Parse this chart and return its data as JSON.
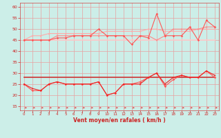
{
  "background_color": "#cceee8",
  "grid_color": "#e8a0a0",
  "xlabel": "Vent moyen/en rafales ( km/h )",
  "ylim": [
    13,
    62
  ],
  "xlim": [
    -0.5,
    23.5
  ],
  "yticks": [
    15,
    20,
    25,
    30,
    35,
    40,
    45,
    50,
    55,
    60
  ],
  "xticks": [
    0,
    1,
    2,
    3,
    4,
    5,
    6,
    7,
    8,
    9,
    10,
    11,
    12,
    13,
    14,
    15,
    16,
    17,
    18,
    19,
    20,
    21,
    22,
    23
  ],
  "upper_flat": [
    45,
    45,
    45,
    45,
    45,
    45,
    45,
    45,
    45,
    45,
    45,
    45,
    45,
    45,
    45,
    45,
    45,
    45,
    45,
    45,
    45,
    45,
    45,
    45
  ],
  "upper_line1": [
    45,
    47,
    47,
    48,
    48,
    48,
    48,
    48,
    48,
    48,
    49,
    49,
    49,
    49,
    49,
    50,
    50,
    49,
    49,
    49,
    49,
    50,
    50,
    50
  ],
  "upper_line2": [
    45,
    45,
    45,
    45,
    47,
    47,
    47,
    47,
    47,
    47,
    47,
    47,
    47,
    47,
    47,
    47,
    45,
    47,
    50,
    50,
    50,
    50,
    51,
    51
  ],
  "upper_line3": [
    45,
    45,
    45,
    45,
    46,
    46,
    47,
    47,
    47,
    50,
    47,
    47,
    47,
    43,
    47,
    46,
    57,
    47,
    47,
    47,
    51,
    45,
    54,
    51
  ],
  "lower_flat": [
    28,
    28,
    28,
    28,
    28,
    28,
    28,
    28,
    28,
    28,
    28,
    28,
    28,
    28,
    28,
    28,
    28,
    28,
    28,
    28,
    28,
    28,
    28,
    28
  ],
  "lower_line1": [
    25,
    23,
    22,
    25,
    26,
    25,
    25,
    25,
    25,
    26,
    20,
    21,
    25,
    25,
    25,
    28,
    30,
    25,
    28,
    29,
    28,
    28,
    31,
    29
  ],
  "lower_line2": [
    25,
    22,
    22,
    25,
    26,
    25,
    25,
    25,
    25,
    26,
    20,
    21,
    25,
    25,
    26,
    28,
    30,
    24,
    27,
    29,
    28,
    28,
    31,
    28
  ],
  "color_light": "#ffbbcc",
  "color_mid1": "#ffaaaa",
  "color_mid2": "#ff8888",
  "color_dark1": "#ff5555",
  "color_dark2": "#ee2222",
  "color_flat_upper": "#ffcccc",
  "color_flat_lower": "#cc3333"
}
